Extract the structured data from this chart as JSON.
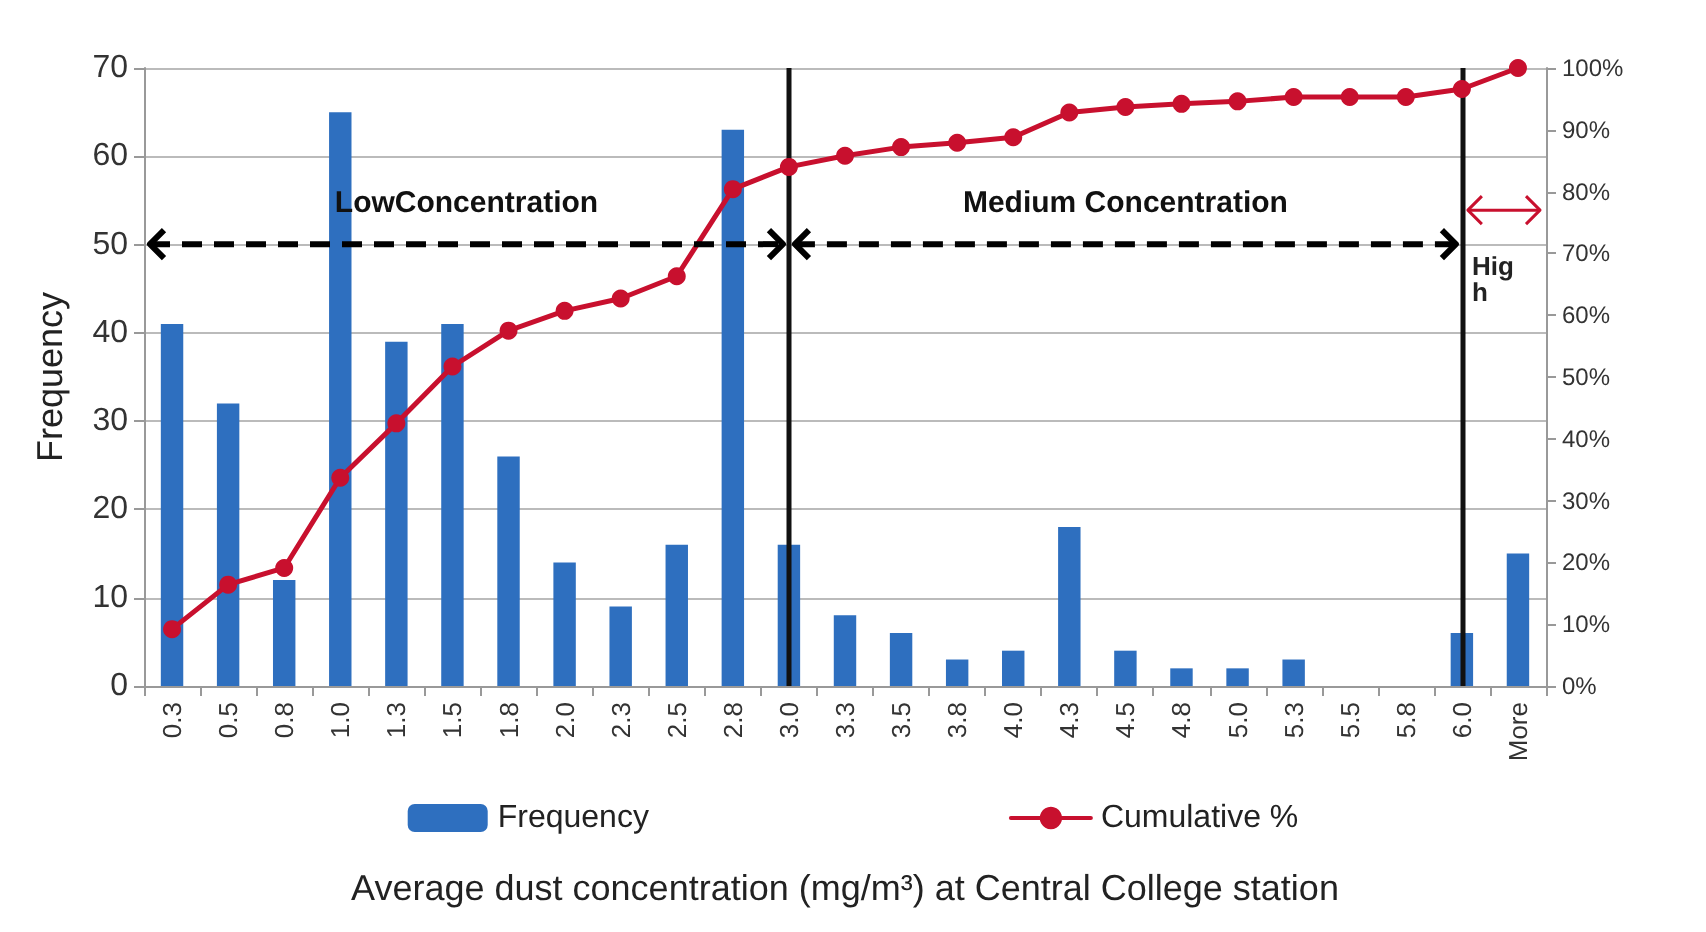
{
  "chart_data": {
    "type": "bar",
    "xlabel": "Average dust concentration (mg/m³) at Central College station",
    "ylabel": "Frequency",
    "categories": [
      "0.3",
      "0.5",
      "0.8",
      "1.0",
      "1.3",
      "1.5",
      "1.8",
      "2.0",
      "2.3",
      "2.5",
      "2.8",
      "3.0",
      "3.3",
      "3.5",
      "3.8",
      "4.0",
      "4.3",
      "4.5",
      "4.8",
      "5.0",
      "5.3",
      "5.5",
      "5.8",
      "6.0",
      "More"
    ],
    "series": [
      {
        "name": "Frequency",
        "color": "#2e6fbf",
        "values": [
          41,
          32,
          12,
          65,
          39,
          41,
          26,
          14,
          9,
          16,
          63,
          16,
          8,
          6,
          3,
          4,
          18,
          4,
          2,
          2,
          3,
          0,
          0,
          6,
          15
        ]
      },
      {
        "name": "Cumulative %",
        "type": "line",
        "axis": "y2",
        "color": "#c8102e",
        "values": [
          9.2,
          16.4,
          19.1,
          33.7,
          42.5,
          51.7,
          57.5,
          60.7,
          62.7,
          66.3,
          80.4,
          84.0,
          85.8,
          87.2,
          87.9,
          88.8,
          92.8,
          93.7,
          94.2,
          94.6,
          95.3,
          95.3,
          95.3,
          96.6,
          100
        ]
      }
    ],
    "ylim": [
      0,
      70
    ],
    "yticks": [
      0,
      10,
      20,
      30,
      40,
      50,
      60,
      70
    ],
    "y2lim": [
      0,
      100
    ],
    "y2ticks": [
      {
        "value": 0,
        "label": "0%"
      },
      {
        "value": 10,
        "label": "10%"
      },
      {
        "value": 20,
        "label": "20%"
      },
      {
        "value": 30,
        "label": "30%"
      },
      {
        "value": 40,
        "label": "40%"
      },
      {
        "value": 50,
        "label": "50%"
      },
      {
        "value": 60,
        "label": "60%"
      },
      {
        "value": 70,
        "label": "70%"
      },
      {
        "value": 80,
        "label": "80%"
      },
      {
        "value": 90,
        "label": "90%"
      },
      {
        "value": 100,
        "label": "100%"
      }
    ],
    "ref_lines": [
      {
        "axis": "x",
        "value": "3.0",
        "color": "#111111"
      },
      {
        "axis": "x",
        "value": "6.0",
        "color": "#111111"
      }
    ],
    "annotations": [
      "LowConcentration",
      "Medium Concentration",
      "High"
    ],
    "grid": "y",
    "legend": "bottom",
    "marker": "circle",
    "line_style": "solid"
  }
}
